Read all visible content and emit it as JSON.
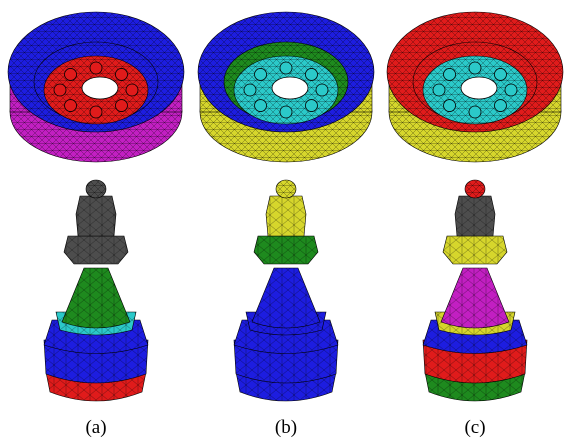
{
  "captions": {
    "a": "(a)",
    "b": "(b)",
    "c": "(c)"
  },
  "segment_colors": {
    "blue": "#1d1de0",
    "red": "#e01b1b",
    "magenta": "#c21fc2",
    "cyan": "#2bc9c9",
    "yellow": "#d6d62c",
    "green": "#1e8a1e",
    "gray": "#4d4d4d"
  },
  "panels": [
    {
      "id": "a",
      "wheel": {
        "outer": "blue",
        "inner_wall": "blue",
        "hub": "red",
        "base": "magenta"
      },
      "pawn": {
        "finial": "gray",
        "head": "gray",
        "collar": "gray",
        "neck": "green",
        "ring": "cyan",
        "body": "blue",
        "base_top": "blue",
        "base_bottom": "red"
      }
    },
    {
      "id": "b",
      "wheel": {
        "outer": "blue",
        "inner_wall": "green",
        "hub": "cyan",
        "base": "yellow"
      },
      "pawn": {
        "finial": "yellow",
        "head": "yellow",
        "collar": "green",
        "neck": "blue",
        "ring": "blue",
        "body": "blue",
        "base_top": "blue",
        "base_bottom": "blue"
      }
    },
    {
      "id": "c",
      "wheel": {
        "outer": "red",
        "inner_wall": "red",
        "hub": "cyan",
        "base": "yellow"
      },
      "pawn": {
        "finial": "red",
        "head": "gray",
        "collar": "yellow",
        "neck": "magenta",
        "ring": "yellow",
        "body": "blue",
        "base_top": "red",
        "base_bottom": "green"
      }
    }
  ]
}
